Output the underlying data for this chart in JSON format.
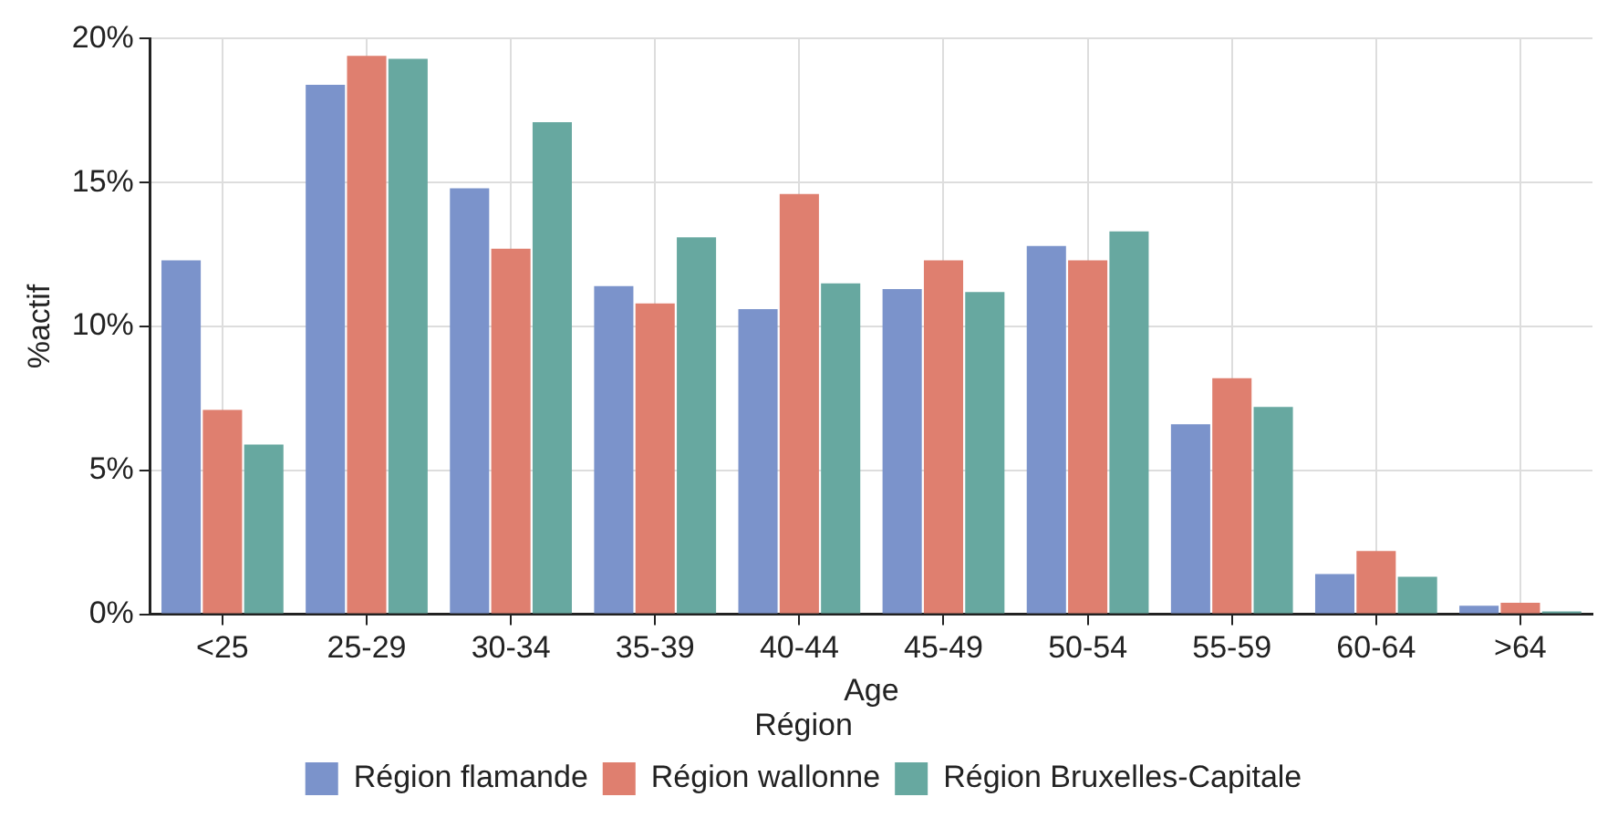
{
  "chart_data": {
    "type": "bar",
    "xlabel": "Age",
    "ylabel": "%actif",
    "legend_title": "Région",
    "categories": [
      "<25",
      "25-29",
      "30-34",
      "35-39",
      "40-44",
      "45-49",
      "50-54",
      "55-59",
      "60-64",
      ">64"
    ],
    "series": [
      {
        "name": "Région flamande",
        "color": "#7b93cb",
        "values": [
          12.3,
          18.4,
          14.8,
          11.4,
          10.6,
          11.3,
          12.8,
          6.6,
          1.4,
          0.3
        ]
      },
      {
        "name": "Région wallonne",
        "color": "#df7f6f",
        "values": [
          7.1,
          19.4,
          12.7,
          10.8,
          14.6,
          12.3,
          12.3,
          8.2,
          2.2,
          0.4
        ]
      },
      {
        "name": "Région Bruxelles-Capitale",
        "color": "#67a8a0",
        "values": [
          5.9,
          19.3,
          17.1,
          13.1,
          11.5,
          11.2,
          13.3,
          7.2,
          1.3,
          0.1
        ]
      }
    ],
    "ylim": [
      0,
      20
    ],
    "yticks": [
      {
        "value": 0,
        "label": "0%"
      },
      {
        "value": 5,
        "label": "5%"
      },
      {
        "value": 10,
        "label": "10%"
      },
      {
        "value": 15,
        "label": "15%"
      },
      {
        "value": 20,
        "label": "20%"
      }
    ],
    "grid": true,
    "legend": "bottom"
  }
}
